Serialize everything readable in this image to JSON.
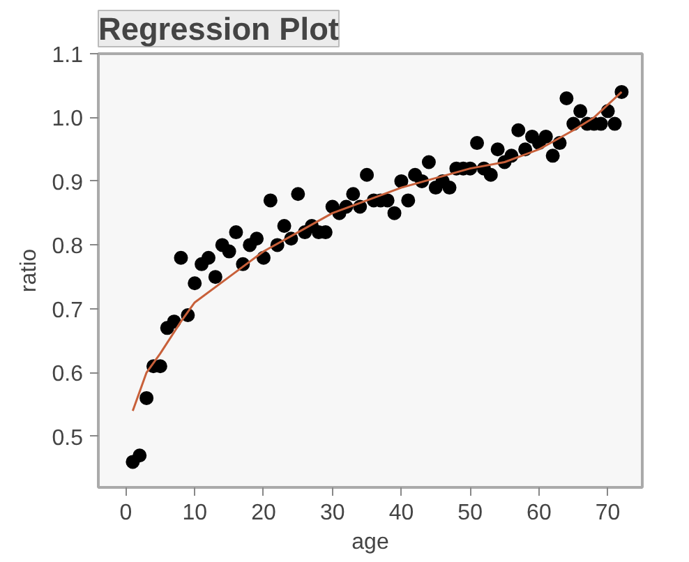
{
  "chart_data": {
    "type": "scatter",
    "title": "Regression Plot",
    "xlabel": "age",
    "ylabel": "ratio",
    "xlim": [
      -4,
      75
    ],
    "ylim": [
      0.42,
      1.1
    ],
    "xticks": [
      0,
      10,
      20,
      30,
      40,
      50,
      60,
      70
    ],
    "yticks": [
      {
        "value": 0.5,
        "label": "0.5"
      },
      {
        "value": 0.6,
        "label": "0.6"
      },
      {
        "value": 0.7,
        "label": "0.7"
      },
      {
        "value": 0.8,
        "label": "0.8"
      },
      {
        "value": 0.9,
        "label": "0.9"
      },
      {
        "value": 1.0,
        "label": "1.0"
      },
      {
        "value": 1.1,
        "label": "1.1"
      }
    ],
    "grid": false,
    "series": [
      {
        "marker": "circle",
        "color": "#000000",
        "x": [
          1,
          2,
          3,
          4,
          5,
          6,
          7,
          8,
          9,
          10,
          11,
          12,
          13,
          14,
          15,
          16,
          17,
          18,
          19,
          20,
          21,
          22,
          23,
          24,
          25,
          26,
          27,
          28,
          29,
          30,
          31,
          32,
          33,
          34,
          35,
          36,
          37,
          38,
          39,
          40,
          41,
          42,
          43,
          44,
          45,
          46,
          47,
          48,
          49,
          50,
          51,
          52,
          53,
          54,
          55,
          56,
          57,
          58,
          59,
          60,
          61,
          62,
          63,
          64,
          65,
          66,
          67,
          68,
          69,
          70,
          71,
          72
        ],
        "values": [
          0.46,
          0.47,
          0.56,
          0.61,
          0.61,
          0.67,
          0.68,
          0.78,
          0.69,
          0.74,
          0.77,
          0.78,
          0.75,
          0.8,
          0.79,
          0.82,
          0.77,
          0.8,
          0.81,
          0.78,
          0.87,
          0.8,
          0.83,
          0.81,
          0.88,
          0.82,
          0.83,
          0.82,
          0.82,
          0.86,
          0.85,
          0.86,
          0.88,
          0.86,
          0.91,
          0.87,
          0.87,
          0.87,
          0.85,
          0.9,
          0.87,
          0.91,
          0.9,
          0.93,
          0.89,
          0.9,
          0.89,
          0.92,
          0.92,
          0.92,
          0.96,
          0.92,
          0.91,
          0.95,
          0.93,
          0.94,
          0.98,
          0.95,
          0.97,
          0.96,
          0.97,
          0.94,
          0.96,
          1.03,
          0.99,
          1.01,
          0.99,
          0.99,
          0.99,
          1.01,
          0.99,
          1.04
        ]
      },
      {
        "type": "line",
        "color": "#c8603a",
        "x": [
          1,
          3,
          5,
          8,
          10,
          15,
          20,
          25,
          30,
          35,
          40,
          45,
          50,
          55,
          60,
          65,
          68,
          72
        ],
        "values": [
          0.54,
          0.6,
          0.63,
          0.68,
          0.71,
          0.75,
          0.79,
          0.82,
          0.85,
          0.87,
          0.89,
          0.905,
          0.92,
          0.93,
          0.95,
          0.98,
          1.0,
          1.04
        ]
      }
    ]
  }
}
